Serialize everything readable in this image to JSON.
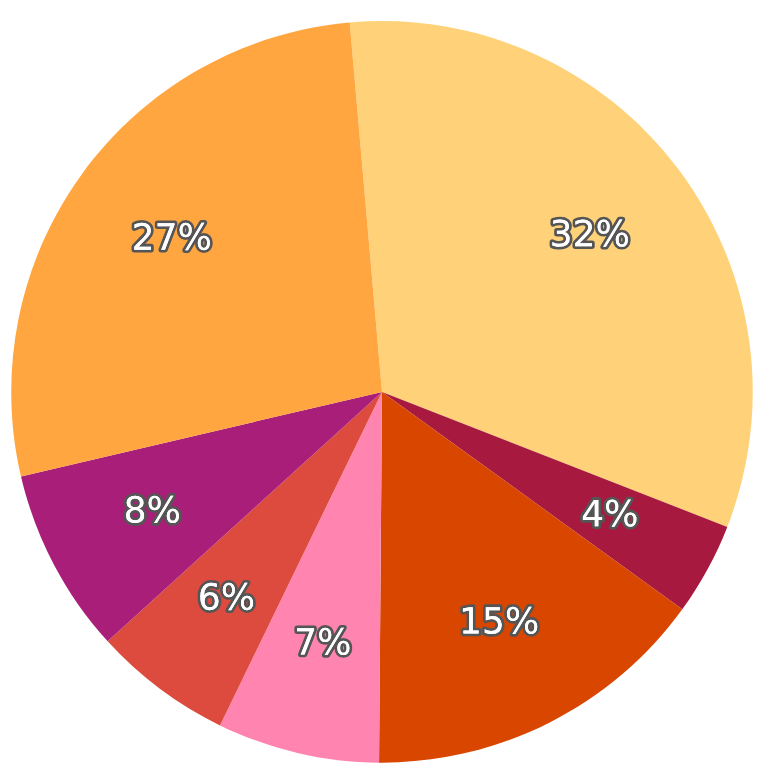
{
  "chart_data": {
    "type": "pie",
    "categories": [
      null,
      null,
      null,
      null,
      null,
      null,
      null
    ],
    "values": [
      32,
      4,
      15,
      7,
      6,
      8,
      27
    ],
    "value_labels": [
      "32%",
      "4%",
      "15%",
      "7%",
      "6%",
      "8%",
      "27%"
    ],
    "colors": [
      "#ffd27a",
      "#a8193f",
      "#d94600",
      "#ff85b0",
      "#dc4b3e",
      "#a91e78",
      "#ffa640"
    ]
  }
}
